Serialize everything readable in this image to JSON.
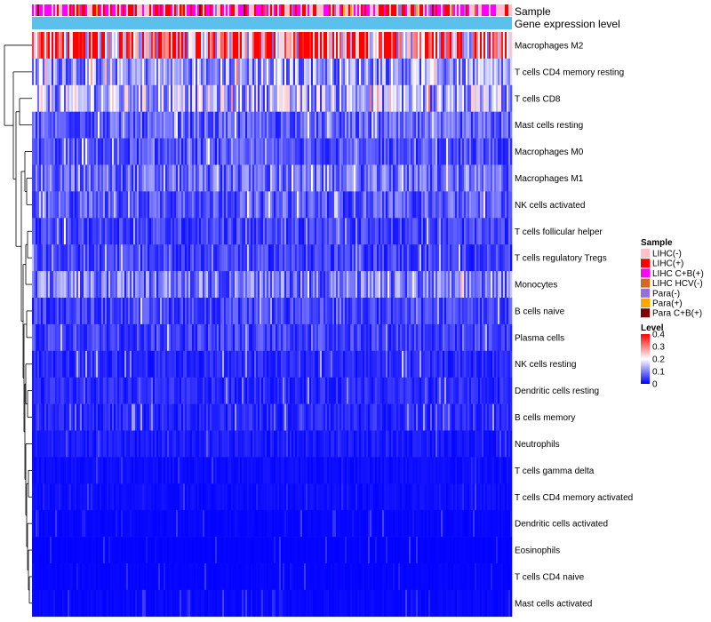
{
  "chart_data": {
    "type": "heatmap",
    "annotation_rows": [
      "Sample",
      "Gene expression level"
    ],
    "rows": [
      {
        "name": "Macrophages M2",
        "mean": 0.3
      },
      {
        "name": "T cells CD4 memory resting",
        "mean": 0.12
      },
      {
        "name": "T cells CD8",
        "mean": 0.14
      },
      {
        "name": "Mast cells resting",
        "mean": 0.07
      },
      {
        "name": "Macrophages M0",
        "mean": 0.06
      },
      {
        "name": "Macrophages M1",
        "mean": 0.08
      },
      {
        "name": "NK cells activated",
        "mean": 0.07
      },
      {
        "name": "T cells follicular helper",
        "mean": 0.05
      },
      {
        "name": "T cells regulatory  Tregs",
        "mean": 0.05
      },
      {
        "name": "Monocytes",
        "mean": 0.09
      },
      {
        "name": "B cells naive",
        "mean": 0.05
      },
      {
        "name": "Plasma cells",
        "mean": 0.05
      },
      {
        "name": "NK cells resting",
        "mean": 0.03
      },
      {
        "name": "Dendritic cells resting",
        "mean": 0.03
      },
      {
        "name": "B cells memory",
        "mean": 0.03
      },
      {
        "name": "Neutrophils",
        "mean": 0.02
      },
      {
        "name": "T cells gamma delta",
        "mean": 0.01
      },
      {
        "name": "T cells CD4 memory activated",
        "mean": 0.01
      },
      {
        "name": "Dendritic cells activated",
        "mean": 0.005
      },
      {
        "name": "Eosinophils",
        "mean": 0.003
      },
      {
        "name": "T cells CD4 naive",
        "mean": 0.004
      },
      {
        "name": "Mast cells activated",
        "mean": 0.006
      }
    ],
    "legend_sample": {
      "title": "Sample",
      "items": [
        {
          "label": "LIHC(-)",
          "color": "#FFC0CB"
        },
        {
          "label": "LIHC(+)",
          "color": "#FF0000"
        },
        {
          "label": "LIHC C+B(+)",
          "color": "#FF00FF"
        },
        {
          "label": "LIHC HCV(-)",
          "color": "#D2691E"
        },
        {
          "label": "Para(-)",
          "color": "#9370DB"
        },
        {
          "label": "Para(+)",
          "color": "#FFA500"
        },
        {
          "label": "Para C+B(+)",
          "color": "#800000"
        }
      ]
    },
    "legend_level": {
      "title": "Level",
      "ticks": [
        "0.4",
        "0.3",
        "0.2",
        "0.1",
        "0"
      ],
      "range": [
        0,
        0.4
      ],
      "colors": [
        "#0000FF",
        "#FFFFFF",
        "#FF0000"
      ]
    },
    "gene_expression_color": "#5BC0EB"
  }
}
